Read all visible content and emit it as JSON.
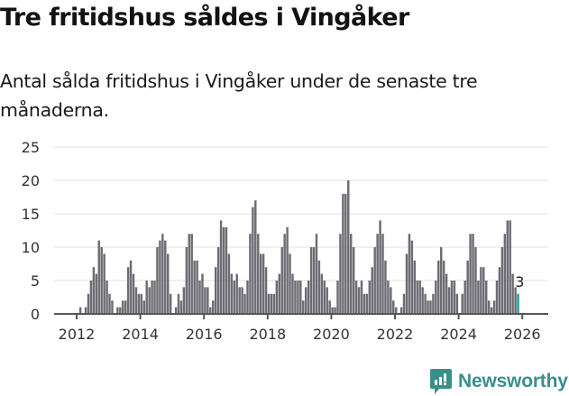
{
  "header": {
    "title": "Tre fritidshus såldes i Vingåker",
    "subtitle": "Antal sålda fritidshus i Vingåker under de senaste tre månaderna."
  },
  "branding": {
    "logo_text": "Newsworthy",
    "logo_color": "#3a8f8a"
  },
  "colors": {
    "bar": "#6d6c72",
    "highlight": "#1a9e98",
    "grid": "#e0e0e0",
    "axis": "#555555"
  },
  "chart_data": {
    "type": "bar",
    "title": "Tre fritidshus såldes i Vingåker",
    "subtitle": "Antal sålda fritidshus i Vingåker under de senaste tre månaderna.",
    "xlabel": "",
    "ylabel": "",
    "ylim": [
      0,
      25
    ],
    "yticks": [
      0,
      5,
      10,
      15,
      20,
      25
    ],
    "xticks": [
      "2012",
      "2014",
      "2016",
      "2018",
      "2020",
      "2022",
      "2024",
      "2026"
    ],
    "grid": true,
    "legend": null,
    "start": "2012-01",
    "frequency": "monthly",
    "annotation": {
      "label": "3",
      "index": "last"
    },
    "values": [
      0,
      1,
      0,
      1,
      3,
      5,
      7,
      6,
      11,
      10,
      9,
      5,
      3,
      2,
      0,
      1,
      1,
      2,
      2,
      7,
      8,
      6,
      4,
      3,
      3,
      2,
      5,
      4,
      5,
      5,
      10,
      11,
      12,
      11,
      9,
      3,
      0,
      1,
      3,
      2,
      4,
      10,
      12,
      12,
      8,
      8,
      5,
      6,
      4,
      4,
      1,
      2,
      7,
      10,
      14,
      13,
      13,
      9,
      6,
      5,
      6,
      4,
      4,
      3,
      5,
      12,
      16,
      17,
      12,
      9,
      9,
      7,
      3,
      3,
      3,
      5,
      6,
      10,
      12,
      13,
      9,
      6,
      5,
      5,
      5,
      2,
      4,
      5,
      10,
      10,
      12,
      8,
      6,
      5,
      4,
      2,
      1,
      1,
      5,
      12,
      18,
      18,
      20,
      12,
      10,
      5,
      4,
      5,
      3,
      3,
      5,
      7,
      10,
      12,
      14,
      12,
      8,
      5,
      4,
      2,
      1,
      0,
      1,
      3,
      9,
      12,
      11,
      8,
      5,
      5,
      4,
      3,
      2,
      2,
      3,
      5,
      8,
      10,
      8,
      6,
      4,
      5,
      5,
      3,
      0,
      3,
      5,
      8,
      12,
      12,
      10,
      5,
      7,
      7,
      5,
      2,
      1,
      2,
      5,
      7,
      10,
      12,
      14,
      14,
      6,
      4,
      3
    ]
  }
}
